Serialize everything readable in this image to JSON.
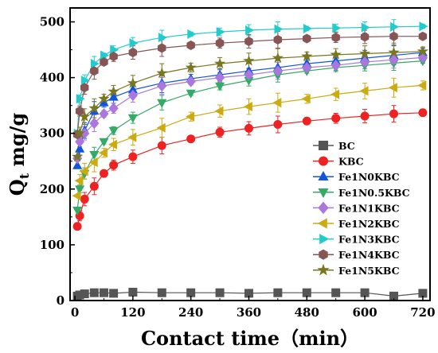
{
  "chart_data": {
    "type": "scatter",
    "xlabel": "Contact time（min）",
    "ylabel_main": "Q",
    "ylabel_sub": "t",
    "ylabel_rest": " mg/g",
    "xlim": [
      -10,
      735
    ],
    "ylim": [
      0,
      525
    ],
    "xticks": [
      0,
      120,
      240,
      360,
      480,
      600,
      720
    ],
    "yticks": [
      0,
      100,
      200,
      300,
      400,
      500
    ],
    "grid": false,
    "legend_position": "bottom-right",
    "x": [
      5,
      10,
      20,
      40,
      60,
      80,
      120,
      180,
      240,
      300,
      360,
      420,
      480,
      540,
      600,
      660,
      720
    ],
    "series": [
      {
        "name": "BC",
        "color": "#555555",
        "marker": "square",
        "has_error": false,
        "values": [
          8,
          10,
          12,
          14,
          14,
          13,
          15,
          14,
          14,
          14,
          13,
          14,
          14,
          14,
          14,
          8,
          13
        ]
      },
      {
        "name": "KBC",
        "color": "#ee2222",
        "marker": "circle",
        "has_error": true,
        "values": [
          133,
          152,
          182,
          205,
          228,
          243,
          258,
          278,
          290,
          302,
          309,
          316,
          322,
          327,
          331,
          335,
          337
        ]
      },
      {
        "name": "Fe1N0KBC",
        "color": "#1155dd",
        "marker": "triangle-up",
        "has_error": true,
        "values": [
          242,
          272,
          305,
          340,
          355,
          365,
          378,
          390,
          398,
          405,
          412,
          418,
          425,
          430,
          435,
          440,
          445
        ]
      },
      {
        "name": "Fe1N0.5KBC",
        "color": "#33aa66",
        "marker": "triangle-down",
        "has_error": true,
        "values": [
          162,
          200,
          228,
          262,
          285,
          305,
          328,
          355,
          372,
          385,
          395,
          405,
          412,
          418,
          422,
          426,
          430
        ]
      },
      {
        "name": "Fe1N1KBC",
        "color": "#aa77dd",
        "marker": "diamond",
        "has_error": true,
        "values": [
          255,
          285,
          300,
          318,
          335,
          345,
          368,
          385,
          393,
          400,
          405,
          412,
          418,
          422,
          428,
          432,
          436
        ]
      },
      {
        "name": "Fe1N2KBC",
        "color": "#ccaa11",
        "marker": "triangle-left",
        "has_error": true,
        "values": [
          188,
          215,
          232,
          248,
          265,
          280,
          293,
          310,
          330,
          340,
          348,
          355,
          362,
          370,
          376,
          382,
          386
        ]
      },
      {
        "name": "Fe1N3KBC",
        "color": "#22cccc",
        "marker": "triangle-right",
        "has_error": true,
        "values": [
          300,
          362,
          395,
          425,
          440,
          450,
          462,
          472,
          478,
          482,
          485,
          487,
          488,
          489,
          490,
          491,
          492
        ]
      },
      {
        "name": "Fe1N4KBC",
        "color": "#885555",
        "marker": "hexagon",
        "has_error": true,
        "values": [
          298,
          340,
          382,
          412,
          428,
          438,
          445,
          453,
          458,
          462,
          465,
          468,
          470,
          472,
          473,
          474,
          474
        ]
      },
      {
        "name": "Fe1N5KBC",
        "color": "#777722",
        "marker": "star",
        "has_error": true,
        "values": [
          258,
          300,
          330,
          345,
          362,
          375,
          390,
          408,
          418,
          425,
          430,
          435,
          438,
          441,
          443,
          445,
          447
        ]
      }
    ]
  }
}
